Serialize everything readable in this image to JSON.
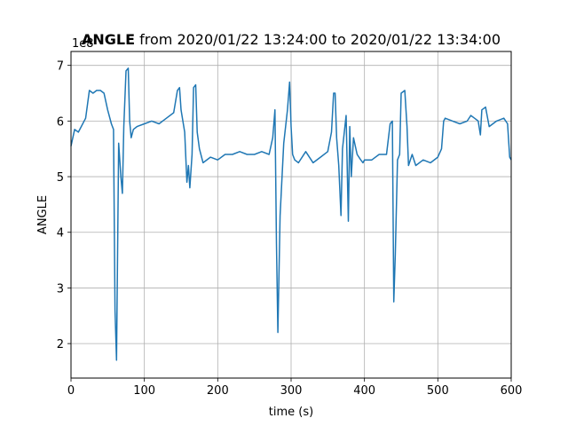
{
  "chart_data": {
    "type": "line",
    "title_bold": "ANGLE",
    "title_rest": " from 2020/01/22 13:24:00 to 2020/01/22 13:34:00",
    "xlabel": "time (s)",
    "ylabel": "ANGLE",
    "offset_text": "1e8",
    "xlim": [
      0,
      600
    ],
    "ylim": [
      1.38,
      7.25
    ],
    "xticks": [
      0,
      100,
      200,
      300,
      400,
      500,
      600
    ],
    "yticks": [
      2,
      3,
      4,
      5,
      6,
      7
    ],
    "grid": true,
    "line_color": "#1f77b4",
    "series": [
      {
        "x": [
          0,
          5,
          10,
          20,
          25,
          30,
          35,
          40,
          45,
          50,
          55,
          58,
          60,
          62,
          65,
          68,
          70,
          72,
          75,
          78,
          80,
          82,
          85,
          90,
          100,
          110,
          120,
          130,
          140,
          145,
          148,
          150,
          155,
          158,
          160,
          162,
          165,
          167,
          170,
          172,
          175,
          180,
          190,
          200,
          210,
          220,
          230,
          240,
          250,
          260,
          270,
          275,
          278,
          280,
          282,
          285,
          290,
          295,
          298,
          300,
          302,
          305,
          310,
          320,
          330,
          340,
          350,
          355,
          358,
          360,
          362,
          365,
          368,
          370,
          375,
          378,
          380,
          382,
          385,
          390,
          395,
          398,
          400,
          410,
          420,
          430,
          435,
          438,
          440,
          442,
          445,
          448,
          450,
          455,
          458,
          460,
          465,
          470,
          480,
          490,
          500,
          505,
          508,
          510,
          520,
          530,
          540,
          545,
          550,
          555,
          558,
          560,
          565,
          570,
          580,
          590,
          595,
          598,
          600
        ],
        "y": [
          5.55,
          5.85,
          5.8,
          6.05,
          6.55,
          6.5,
          6.55,
          6.55,
          6.5,
          6.2,
          5.95,
          5.85,
          2.6,
          1.7,
          5.6,
          5.0,
          4.7,
          5.9,
          6.9,
          6.95,
          6.0,
          5.7,
          5.85,
          5.9,
          5.95,
          6.0,
          5.95,
          6.05,
          6.15,
          6.55,
          6.6,
          6.2,
          5.8,
          4.9,
          5.2,
          4.8,
          5.4,
          6.6,
          6.65,
          5.8,
          5.5,
          5.25,
          5.35,
          5.3,
          5.4,
          5.4,
          5.45,
          5.4,
          5.4,
          5.45,
          5.4,
          5.7,
          6.2,
          3.8,
          2.2,
          4.3,
          5.6,
          6.2,
          6.7,
          5.9,
          5.4,
          5.3,
          5.25,
          5.45,
          5.25,
          5.35,
          5.45,
          5.8,
          6.5,
          6.5,
          5.7,
          5.2,
          4.3,
          5.5,
          6.1,
          4.2,
          5.9,
          5.0,
          5.7,
          5.4,
          5.3,
          5.25,
          5.3,
          5.3,
          5.4,
          5.4,
          5.95,
          6.0,
          2.75,
          3.6,
          5.3,
          5.4,
          6.5,
          6.55,
          5.9,
          5.2,
          5.4,
          5.2,
          5.3,
          5.25,
          5.35,
          5.5,
          6.0,
          6.05,
          6.0,
          5.95,
          6.0,
          6.1,
          6.05,
          6.0,
          5.75,
          6.2,
          6.25,
          5.9,
          6.0,
          6.05,
          5.95,
          5.35,
          5.3
        ]
      }
    ]
  }
}
